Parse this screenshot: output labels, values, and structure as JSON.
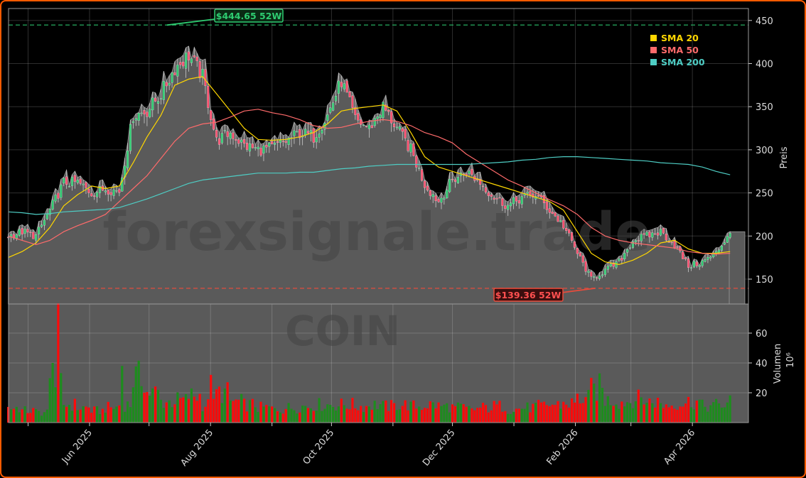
{
  "chart_data": {
    "type": "candlestick",
    "ticker": "COIN",
    "watermark": "forexsignale.trade",
    "ylabel": "Preis",
    "volume_label": "Volumen",
    "volume_unit": "10⁶",
    "ylim": [
      100,
      460
    ],
    "volume_ylim": [
      0,
      80
    ],
    "y_ticks": [
      150,
      200,
      250,
      300,
      350,
      400,
      450
    ],
    "volume_ticks": [
      20,
      40,
      60
    ],
    "x_ticks": [
      {
        "date": "2025-06-01",
        "label": "Jun 2025"
      },
      {
        "date": "2025-08-01",
        "label": "Aug 2025"
      },
      {
        "date": "2025-10-01",
        "label": "Oct 2025"
      },
      {
        "date": "2025-12-01",
        "label": "Dec 2025"
      },
      {
        "date": "2026-02-01",
        "label": "Feb 2026"
      },
      {
        "date": "2026-04-01",
        "label": "Apr 2026"
      }
    ],
    "x_minor_ticks": [
      "2025-05-01",
      "2025-07-01",
      "2025-09-01",
      "2025-11-01",
      "2026-01-01",
      "2026-03-01"
    ],
    "grid": true,
    "start_date": "2025-04-21",
    "frequency": "weekly",
    "weekly_close": [
      200,
      205,
      200,
      230,
      262,
      262,
      250,
      255,
      252,
      340,
      345,
      365,
      395,
      410,
      385,
      310,
      320,
      305,
      300,
      302,
      310,
      320,
      315,
      340,
      380,
      335,
      325,
      350,
      325,
      300,
      260,
      240,
      265,
      275,
      262,
      245,
      235,
      245,
      248,
      230,
      212,
      180,
      150,
      160,
      170,
      195,
      200,
      205,
      190,
      165,
      170,
      180,
      205
    ],
    "weekly_volume": [
      10,
      8,
      7,
      25,
      12,
      10,
      8,
      10,
      12,
      30,
      20,
      14,
      15,
      18,
      12,
      20,
      14,
      12,
      10,
      9,
      10,
      11,
      12,
      12,
      12,
      11,
      12,
      11,
      12,
      11,
      12,
      11,
      10,
      9,
      10,
      11,
      9,
      10,
      11,
      12,
      13,
      16,
      22,
      15,
      14,
      16,
      14,
      12,
      13,
      14,
      11,
      12,
      14
    ],
    "volume_peaks": [
      {
        "date": "2025-05-13",
        "value": 40
      },
      {
        "date": "2025-05-16",
        "value": 80
      },
      {
        "date": "2025-06-18",
        "value": 38
      },
      {
        "date": "2025-08-01",
        "value": 32
      },
      {
        "date": "2026-02-09",
        "value": 30
      },
      {
        "date": "2026-02-13",
        "value": 33
      }
    ],
    "series": [
      {
        "name": "SMA 20",
        "color": "#ffd700",
        "values": [
          175,
          182,
          192,
          210,
          235,
          248,
          258,
          255,
          258,
          285,
          315,
          340,
          375,
          382,
          385,
          365,
          345,
          325,
          312,
          311,
          312,
          315,
          320,
          330,
          345,
          348,
          350,
          352,
          345,
          320,
          292,
          280,
          275,
          270,
          265,
          260,
          255,
          250,
          245,
          240,
          230,
          205,
          180,
          170,
          167,
          172,
          180,
          192,
          195,
          185,
          180,
          180,
          182
        ]
      },
      {
        "name": "SMA 50",
        "color": "#ff6b6b",
        "values": [
          200,
          195,
          190,
          195,
          205,
          212,
          218,
          225,
          240,
          255,
          270,
          290,
          310,
          325,
          330,
          332,
          338,
          345,
          347,
          343,
          340,
          335,
          328,
          325,
          326,
          330,
          333,
          335,
          333,
          328,
          320,
          315,
          308,
          295,
          285,
          275,
          265,
          258,
          250,
          242,
          235,
          225,
          210,
          200,
          195,
          192,
          190,
          188,
          186,
          182,
          180,
          179,
          180
        ]
      },
      {
        "name": "SMA 200",
        "color": "#4ecdc4",
        "values": [
          228,
          227,
          225,
          226,
          228,
          229,
          230,
          231,
          233,
          238,
          243,
          249,
          255,
          261,
          265,
          267,
          269,
          271,
          273,
          273,
          273,
          274,
          274,
          276,
          278,
          279,
          281,
          282,
          283,
          283,
          283,
          283,
          283,
          283,
          284,
          285,
          286,
          288,
          289,
          291,
          292,
          292,
          291,
          290,
          289,
          288,
          287,
          285,
          284,
          283,
          280,
          275,
          271
        ]
      }
    ],
    "annotations": {
      "high": {
        "value": 444.65,
        "label": "$444.65 52W",
        "date": "2025-07-10",
        "color": "#2ecc71"
      },
      "low": {
        "value": 139.36,
        "label": "$139.36 52W",
        "date": "2026-02-11",
        "color": "#e74c3c"
      }
    },
    "colors": {
      "up": "#2ecc71",
      "down": "#ff4d6d",
      "vol_up": "#1e8c1e",
      "vol_down": "#ff0a0a",
      "area": "#5a5a5a",
      "border": "#ff5a00"
    }
  }
}
